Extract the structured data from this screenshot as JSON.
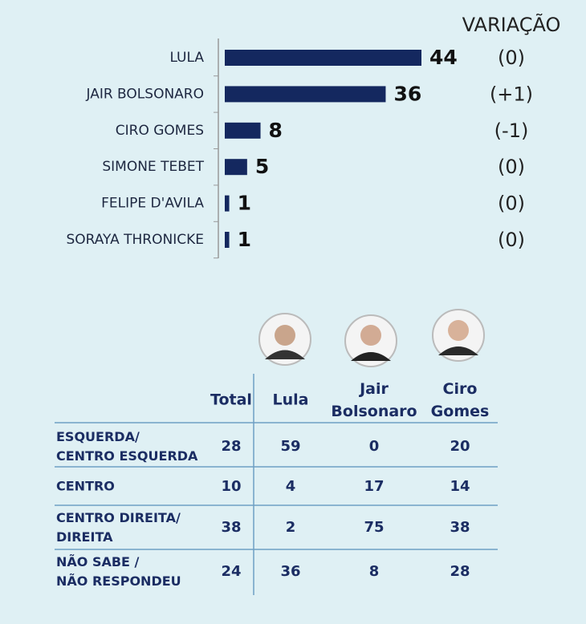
{
  "chart_data": {
    "type": "bar",
    "categories": [
      "LULA",
      "JAIR BOLSONARO",
      "CIRO GOMES",
      "SIMONE TEBET",
      "FELIPE D'AVILA",
      "SORAYA THRONICKE"
    ],
    "values": [
      44,
      36,
      8,
      5,
      1,
      1
    ],
    "color": "#14285f",
    "variation_title": "VARIAÇÃO",
    "variation": [
      "(0)",
      "(+1)",
      "(-1)",
      "(0)",
      "(0)",
      "(0)"
    ]
  },
  "table": {
    "columns": [
      "Total",
      "Lula",
      "Jair\nBolsonaro",
      "Ciro\nGomes"
    ],
    "rows": [
      {
        "label": "ESQUERDA/\nCENTRO ESQUERDA",
        "values": [
          28,
          59,
          0,
          20
        ]
      },
      {
        "label": "CENTRO",
        "values": [
          10,
          4,
          17,
          14
        ]
      },
      {
        "label": "CENTRO DIREITA/\nDIREITA",
        "values": [
          38,
          2,
          75,
          38
        ]
      },
      {
        "label": "NÃO SABE /\nNÃO RESPONDEU",
        "values": [
          24,
          36,
          8,
          28
        ]
      }
    ]
  }
}
